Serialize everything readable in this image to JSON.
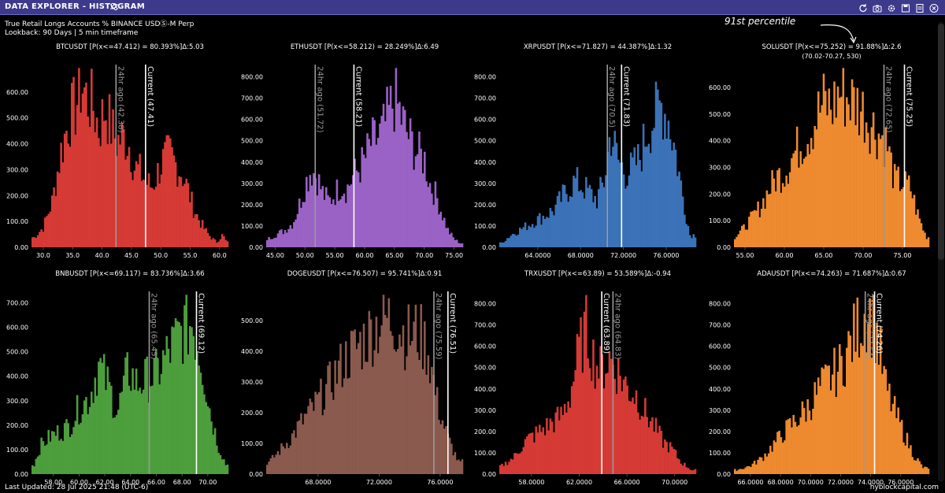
{
  "window": {
    "title": "DATA EXPLORER - HISTOGRAM",
    "subtitle": "True Retail Longs Accounts % BINANCE USDⓈ-M Perp",
    "lookback": "Lookback: 90 Days | 5 min timeframe",
    "last_updated": "Last Updated: 28 Jul 2025 21:48 (UTC-6)",
    "brand": "hyblockcapital.com",
    "annotation": "91st percentile"
  },
  "chart_data": [
    {
      "type": "bar",
      "title": "BTCUSDT [P(x<=47.412) = 80.393%]Δ:5.03",
      "color": "#d63a35",
      "x_ticks": [
        "30.0",
        "35.0",
        "40.0",
        "45.0",
        "50.0",
        "55.0",
        "60.0"
      ],
      "x_tick_values": [
        30,
        35,
        40,
        45,
        50,
        55,
        60
      ],
      "xlim": [
        28.0,
        61.5
      ],
      "y_ticks": [
        "0.00",
        "100.00",
        "200.00",
        "300.00",
        "400.00",
        "500.00",
        "600.00"
      ],
      "y_tick_values": [
        0,
        100,
        200,
        300,
        400,
        500,
        600
      ],
      "ylim": [
        0,
        700
      ],
      "markers": [
        {
          "label": "24hr ago (42.38)",
          "value": 42.38,
          "color": "#9a9a9a"
        },
        {
          "label": "Current (47.41)",
          "value": 47.41,
          "color": "#ffffff"
        }
      ],
      "profile_x": [
        28.5,
        30,
        31.5,
        33,
        34.5,
        35.5,
        36.5,
        37.5,
        38.5,
        39.5,
        40.5,
        41.5,
        42.5,
        43.5,
        44.5,
        45.5,
        46.5,
        47.5,
        48.5,
        49.5,
        50.5,
        51.5,
        52.5,
        53.5,
        54.5,
        55.5,
        56.5,
        57.5,
        58.5,
        59.5,
        60.5,
        61.2
      ],
      "profile_y": [
        40,
        80,
        180,
        380,
        520,
        560,
        650,
        590,
        560,
        470,
        560,
        480,
        420,
        440,
        420,
        320,
        300,
        260,
        240,
        300,
        350,
        370,
        330,
        300,
        240,
        160,
        110,
        70,
        40,
        20,
        50,
        20
      ]
    },
    {
      "type": "bar",
      "title": "ETHUSDT [P(x<=58.212) = 28.249%]Δ:6.49",
      "color": "#9b62c6",
      "x_ticks": [
        "45.00",
        "50.00",
        "55.00",
        "60.00",
        "65.00",
        "70.00",
        "75.00"
      ],
      "x_tick_values": [
        45,
        50,
        55,
        60,
        65,
        70,
        75
      ],
      "xlim": [
        43.5,
        76.5
      ],
      "y_ticks": [
        "0.00",
        "100.00",
        "200.00",
        "300.00",
        "400.00",
        "500.00",
        "600.00",
        "700.00",
        "800.00"
      ],
      "y_tick_values": [
        0,
        100,
        200,
        300,
        400,
        500,
        600,
        700,
        800
      ],
      "ylim": [
        0,
        850
      ],
      "markers": [
        {
          "label": "24hr ago (51.72)",
          "value": 51.72,
          "color": "#9a9a9a"
        },
        {
          "label": "Current (58.21)",
          "value": 58.21,
          "color": "#ffffff"
        }
      ],
      "profile_x": [
        43.8,
        45,
        46.5,
        48,
        49,
        50,
        51,
        52,
        53,
        54,
        55,
        56,
        57,
        58,
        59,
        60,
        61,
        62,
        63,
        64,
        65,
        66,
        67,
        68,
        69,
        70,
        71,
        72,
        73,
        74,
        75,
        76
      ],
      "profile_y": [
        40,
        60,
        80,
        120,
        200,
        300,
        380,
        340,
        260,
        220,
        260,
        300,
        280,
        340,
        380,
        420,
        500,
        520,
        560,
        640,
        720,
        640,
        560,
        500,
        450,
        430,
        300,
        250,
        160,
        80,
        40,
        20
      ]
    },
    {
      "type": "bar",
      "title": "XRPUSDT [P(x<=71.827) = 44.387%]Δ:1.32",
      "color": "#3b72b8",
      "x_ticks": [
        "64.0000",
        "68.0000",
        "72.0000",
        "76.0000"
      ],
      "x_tick_values": [
        64,
        68,
        72,
        76
      ],
      "xlim": [
        60.4,
        78.8
      ],
      "y_ticks": [
        "0.00",
        "100.00",
        "200.00",
        "300.00",
        "400.00",
        "500.00",
        "600.00",
        "700.00",
        "800.00"
      ],
      "y_tick_values": [
        0,
        100,
        200,
        300,
        400,
        500,
        600,
        700,
        800
      ],
      "ylim": [
        0,
        850
      ],
      "markers": [
        {
          "label": "24hr ago (70.5)",
          "value": 70.5,
          "color": "#9a9a9a"
        },
        {
          "label": "Current (71.83)",
          "value": 71.83,
          "color": "#ffffff"
        }
      ],
      "profile_x": [
        60.6,
        61.5,
        62.5,
        63.5,
        64.5,
        65.5,
        66.5,
        67.5,
        68.5,
        69.5,
        70.2,
        70.8,
        71.5,
        72.2,
        72.8,
        73.5,
        74.2,
        75,
        75.6,
        76.2,
        76.8,
        77.5,
        78.2
      ],
      "profile_y": [
        20,
        60,
        90,
        120,
        150,
        180,
        260,
        320,
        280,
        230,
        320,
        560,
        420,
        360,
        380,
        430,
        560,
        640,
        690,
        620,
        480,
        260,
        60
      ]
    },
    {
      "type": "bar",
      "title": "SOLUSDT [P(x<=75.252) = 91.88%]Δ:2.6",
      "subtitle": "(70.02-70.27, 530)",
      "color": "#ee8a2f",
      "x_ticks": [
        "55.00",
        "60.00",
        "65.00",
        "70.00",
        "75.00"
      ],
      "x_tick_values": [
        55,
        60,
        65,
        70,
        75
      ],
      "xlim": [
        53.6,
        78.4
      ],
      "y_ticks": [
        "0.00",
        "100.00",
        "200.00",
        "300.00",
        "400.00",
        "500.00",
        "600.00"
      ],
      "y_tick_values": [
        0,
        100,
        200,
        300,
        400,
        500,
        600
      ],
      "ylim": [
        0,
        680
      ],
      "markers": [
        {
          "label": "24hr ago (72.65)",
          "value": 72.65,
          "color": "#9a9a9a"
        },
        {
          "label": "Current (75.25)",
          "value": 75.25,
          "color": "#ffffff"
        }
      ],
      "profile_x": [
        53.8,
        55,
        56,
        57,
        58,
        59,
        60,
        61,
        62,
        63,
        64,
        65,
        66,
        67,
        68,
        69,
        70,
        71,
        72,
        73,
        74,
        75,
        76,
        77,
        78
      ],
      "profile_y": [
        40,
        80,
        120,
        160,
        220,
        270,
        290,
        350,
        400,
        440,
        500,
        560,
        540,
        600,
        580,
        560,
        530,
        480,
        440,
        400,
        260,
        250,
        230,
        120,
        40
      ]
    },
    {
      "type": "bar",
      "title": "BNBUSDT [P(x<=69.117) = 83.736%]Δ:3.66",
      "color": "#4d9e3c",
      "x_ticks": [
        "58.00",
        "60.00",
        "62.00",
        "64.00",
        "66.00",
        "68.00",
        "70.00"
      ],
      "x_tick_values": [
        58,
        60,
        62,
        64,
        66,
        68,
        70
      ],
      "xlim": [
        56.3,
        71.6
      ],
      "y_ticks": [
        "0.00",
        "100.00",
        "200.00",
        "300.00",
        "400.00",
        "500.00",
        "600.00",
        "700.00"
      ],
      "y_tick_values": [
        0,
        100,
        200,
        300,
        400,
        500,
        600,
        700
      ],
      "ylim": [
        0,
        740
      ],
      "markers": [
        {
          "label": "24hr ago (65.45)",
          "value": 65.45,
          "color": "#9a9a9a"
        },
        {
          "label": "Current (69.12)",
          "value": 69.12,
          "color": "#ffffff"
        }
      ],
      "profile_x": [
        56.5,
        57,
        57.8,
        58.5,
        59.2,
        60,
        60.8,
        61.5,
        62.2,
        63,
        63.8,
        64.5,
        65.2,
        66,
        66.8,
        67.5,
        68.2,
        68.8,
        69.5,
        70.2,
        70.8,
        71.4
      ],
      "profile_y": [
        40,
        120,
        160,
        180,
        200,
        280,
        320,
        460,
        380,
        260,
        440,
        380,
        400,
        420,
        500,
        560,
        620,
        640,
        480,
        260,
        120,
        40
      ]
    },
    {
      "type": "bar",
      "title": "DOGEUSDT [P(x<=76.507) = 95.741%]Δ:0.91",
      "color": "#8b5a4e",
      "x_ticks": [
        "68.0000",
        "72.0000",
        "76.0000"
      ],
      "x_tick_values": [
        68,
        72,
        76
      ],
      "xlim": [
        64.6,
        77.5
      ],
      "y_ticks": [
        "0.00",
        "100.00",
        "200.00",
        "300.00",
        "400.00",
        "500.00"
      ],
      "y_tick_values": [
        0,
        100,
        200,
        300,
        400,
        500
      ],
      "ylim": [
        0,
        590
      ],
      "markers": [
        {
          "label": "24hr ago (75.59)",
          "value": 75.59,
          "color": "#9a9a9a"
        },
        {
          "label": "Current (76.51)",
          "value": 76.51,
          "color": "#ffffff"
        }
      ],
      "profile_x": [
        64.8,
        65.5,
        66.2,
        67,
        67.8,
        68.5,
        69.2,
        70,
        70.8,
        71.5,
        72.2,
        73,
        73.8,
        74.5,
        75.2,
        75.8,
        76.5,
        77.2
      ],
      "profile_y": [
        40,
        80,
        120,
        180,
        230,
        280,
        340,
        400,
        440,
        480,
        520,
        520,
        460,
        480,
        420,
        240,
        120,
        40
      ]
    },
    {
      "type": "bar",
      "title": "TRXUSDT [P(x<=63.89) = 53.589%]Δ:-0.94",
      "color": "#d63a35",
      "x_ticks": [
        "58.0000",
        "62.0000",
        "66.0000",
        "70.0000"
      ],
      "x_tick_values": [
        58,
        62,
        66,
        70
      ],
      "xlim": [
        55.3,
        71.8
      ],
      "y_ticks": [
        "0.00",
        "100.00",
        "200.00",
        "300.00",
        "400.00",
        "500.00",
        "600.00",
        "700.00",
        "800.00"
      ],
      "y_tick_values": [
        0,
        100,
        200,
        300,
        400,
        500,
        600,
        700,
        800
      ],
      "ylim": [
        0,
        850
      ],
      "markers": [
        {
          "label": "Current (63.89)",
          "value": 63.89,
          "color": "#ffffff"
        },
        {
          "label": "24hr ago (64.83)",
          "value": 64.83,
          "color": "#9a9a9a"
        }
      ],
      "profile_x": [
        55.5,
        56.5,
        57.5,
        58.5,
        59.5,
        60.5,
        61.2,
        62,
        62.6,
        63.2,
        63.8,
        64.5,
        65.2,
        66,
        66.8,
        67.5,
        68.2,
        69,
        69.8,
        70.5,
        71.4
      ],
      "profile_y": [
        40,
        80,
        160,
        200,
        240,
        280,
        380,
        600,
        700,
        560,
        500,
        560,
        500,
        420,
        380,
        300,
        240,
        160,
        120,
        60,
        20
      ]
    },
    {
      "type": "bar",
      "title": "ADAUSDT [P(x<=74.263) = 71.687%]Δ:0.67",
      "color": "#ee8a2f",
      "x_ticks": [
        "66.0000",
        "68.0000",
        "70.0000",
        "72.0000",
        "74.0000",
        "76.0000"
      ],
      "x_tick_values": [
        66,
        68,
        70,
        72,
        74,
        76
      ],
      "xlim": [
        64.9,
        77.9
      ],
      "y_ticks": [
        "0.00",
        "100.00",
        "200.00",
        "300.00",
        "400.00",
        "500.00",
        "600.00",
        "700.00",
        "800.00"
      ],
      "y_tick_values": [
        0,
        100,
        200,
        300,
        400,
        500,
        600,
        700,
        800
      ],
      "ylim": [
        0,
        850
      ],
      "markers": [
        {
          "label": "24hr ago (73.64)",
          "value": 73.64,
          "color": "#9a9a9a"
        },
        {
          "label": "Current (74.26)",
          "value": 74.26,
          "color": "#ffffff"
        }
      ],
      "profile_x": [
        65.1,
        66,
        66.8,
        67.5,
        68.2,
        69,
        69.8,
        70.5,
        71.2,
        72,
        72.6,
        73.2,
        73.8,
        74.4,
        75,
        75.6,
        76.2,
        76.8,
        77.5
      ],
      "profile_y": [
        20,
        40,
        80,
        140,
        200,
        260,
        320,
        400,
        460,
        520,
        620,
        720,
        800,
        680,
        420,
        300,
        200,
        100,
        30
      ]
    }
  ]
}
